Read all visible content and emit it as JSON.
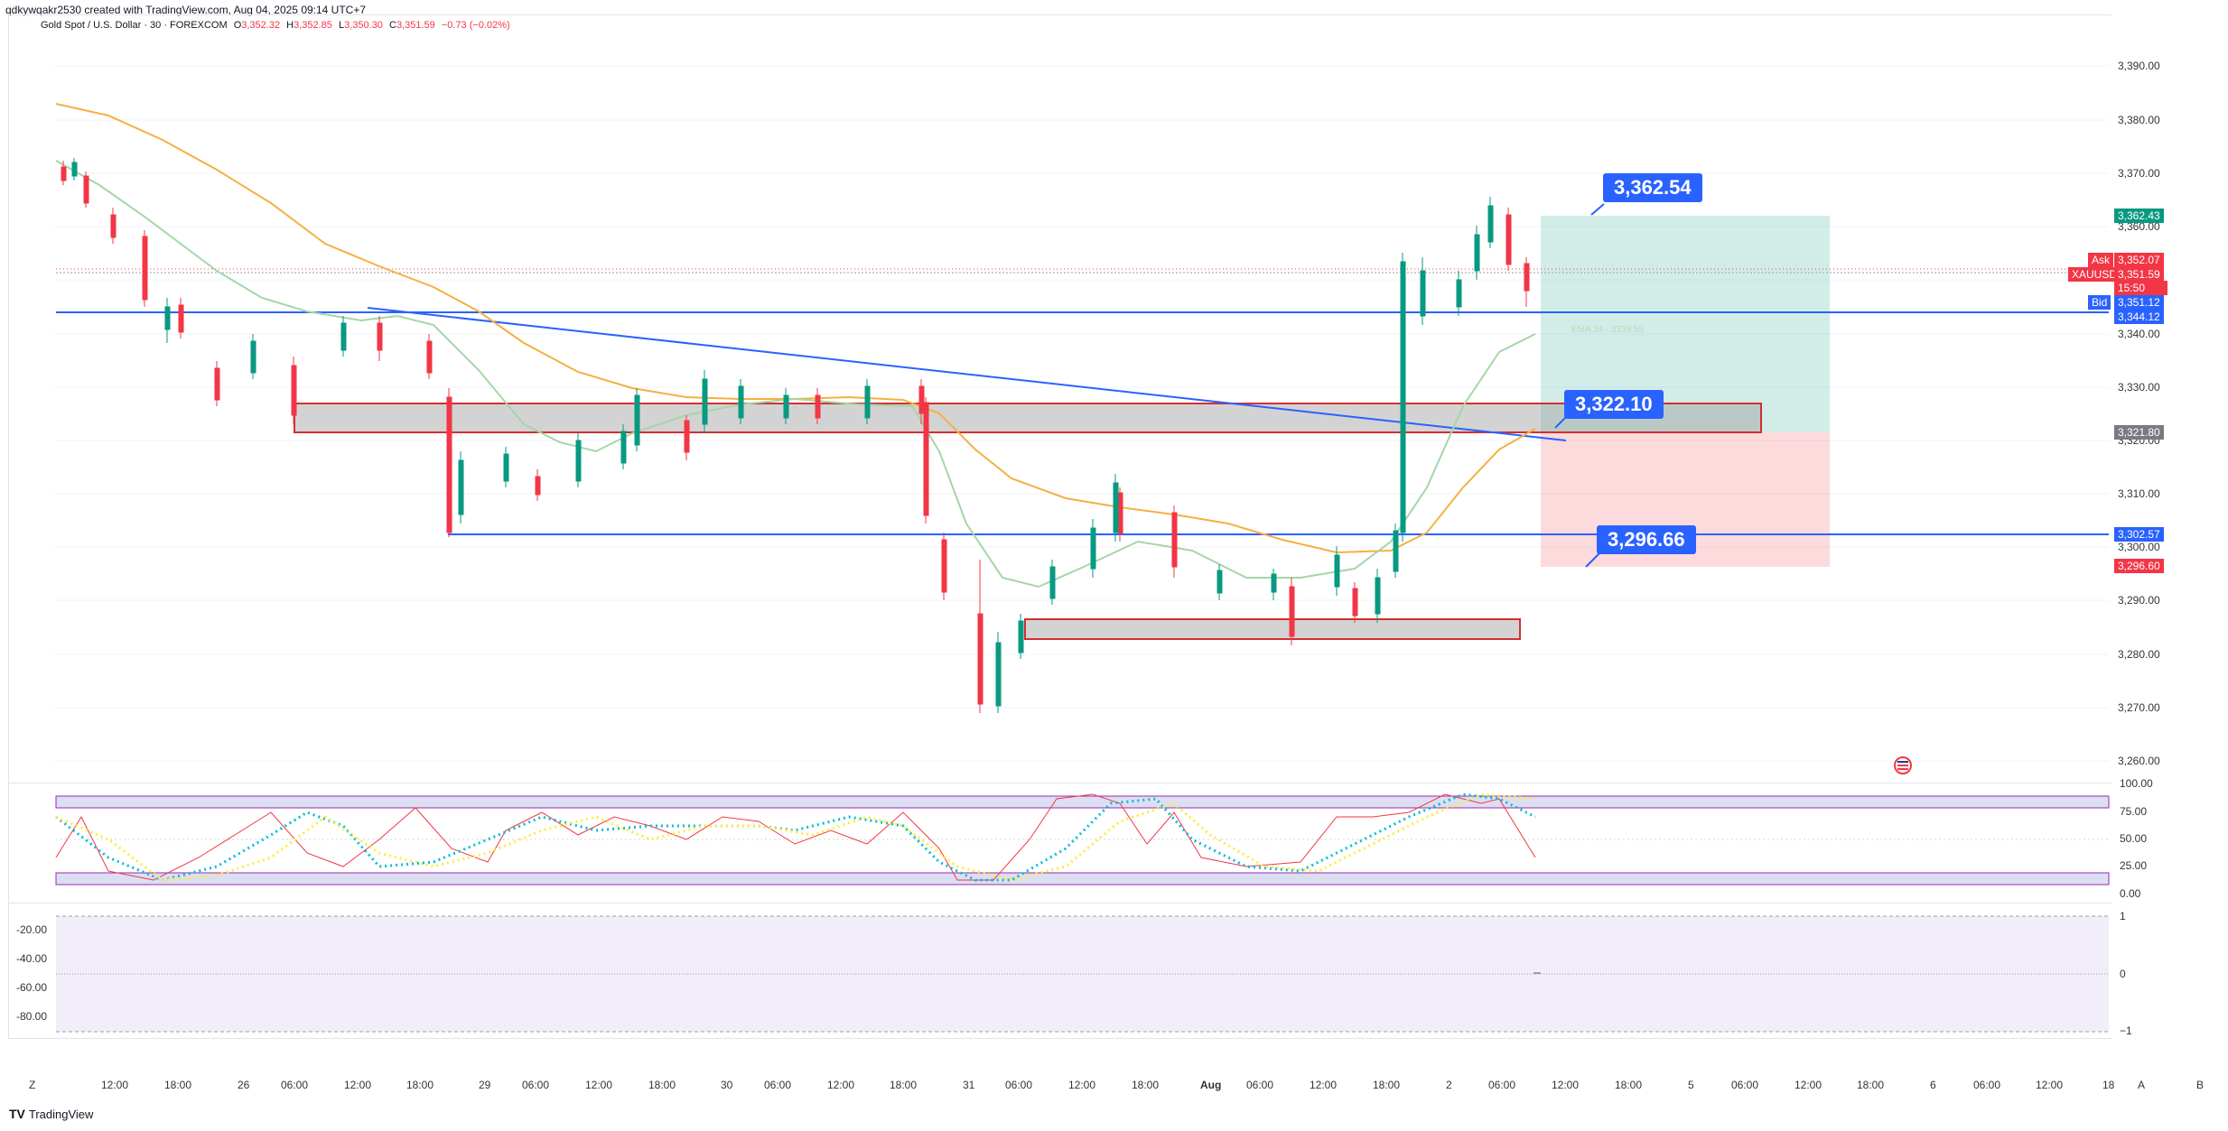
{
  "credit": "qdkywqakr2530 created with TradingView.com, Aug 04, 2025 09:14 UTC+7",
  "symbol": {
    "name": "Gold Spot / U.S. Dollar · 30 · FOREXCOM",
    "o_label": "O",
    "o": "3,352.32",
    "h_label": "H",
    "h": "3,352.85",
    "l_label": "L",
    "l": "3,350.30",
    "c_label": "C",
    "c": "3,351.59",
    "change": "−0.73 (−0.02%)"
  },
  "price_axis": [
    "3,390.00",
    "3,380.00",
    "3,370.00",
    "3,360.00",
    "3,340.00",
    "3,330.00",
    "3,320.00",
    "3,310.00",
    "3,300.00",
    "3,290.00",
    "3,280.00",
    "3,270.00",
    "3,260.00"
  ],
  "badges": {
    "target_price": "3,362.43",
    "ask_label": "Ask",
    "ask": "3,352.07",
    "symbol_tag": "XAUUSD",
    "last": "3,351.59",
    "countdown": "15:50",
    "bid_label": "Bid",
    "bid": "3,351.12",
    "hline_price": "3,344.12",
    "entry_price": "3,321.80",
    "support_price": "3,302.57",
    "stop_price": "3,296.60"
  },
  "callouts": {
    "target": "3,362.54",
    "entry": "3,322.10",
    "stop": "3,296.66"
  },
  "ema_label": "EMA 34 · 3339.55",
  "stoch_axis": [
    "100.00",
    "75.00",
    "50.00",
    "25.00",
    "0.00"
  ],
  "osc_left_axis": [
    "-20.00",
    "-40.00",
    "-60.00",
    "-80.00"
  ],
  "osc_right_axis": [
    "1",
    "0",
    "−1"
  ],
  "time_axis": [
    "12:00",
    "18:00",
    "26",
    "06:00",
    "12:00",
    "18:00",
    "29",
    "06:00",
    "12:00",
    "18:00",
    "30",
    "06:00",
    "12:00",
    "18:00",
    "31",
    "06:00",
    "12:00",
    "18:00",
    "Aug",
    "06:00",
    "12:00",
    "18:00",
    "2",
    "06:00",
    "12:00",
    "18:00",
    "5",
    "06:00",
    "12:00",
    "18:00",
    "6",
    "06:00",
    "12:00",
    "18"
  ],
  "time_axis_left": "Z",
  "time_axis_right": "A",
  "time_axis_right2": "B",
  "logo_text": "TradingView",
  "colors": {
    "blue": "#2962ff",
    "red": "#f23645",
    "green": "#089981",
    "ema_fast": "#a5d6a7",
    "ema_slow": "#f5b041"
  }
}
